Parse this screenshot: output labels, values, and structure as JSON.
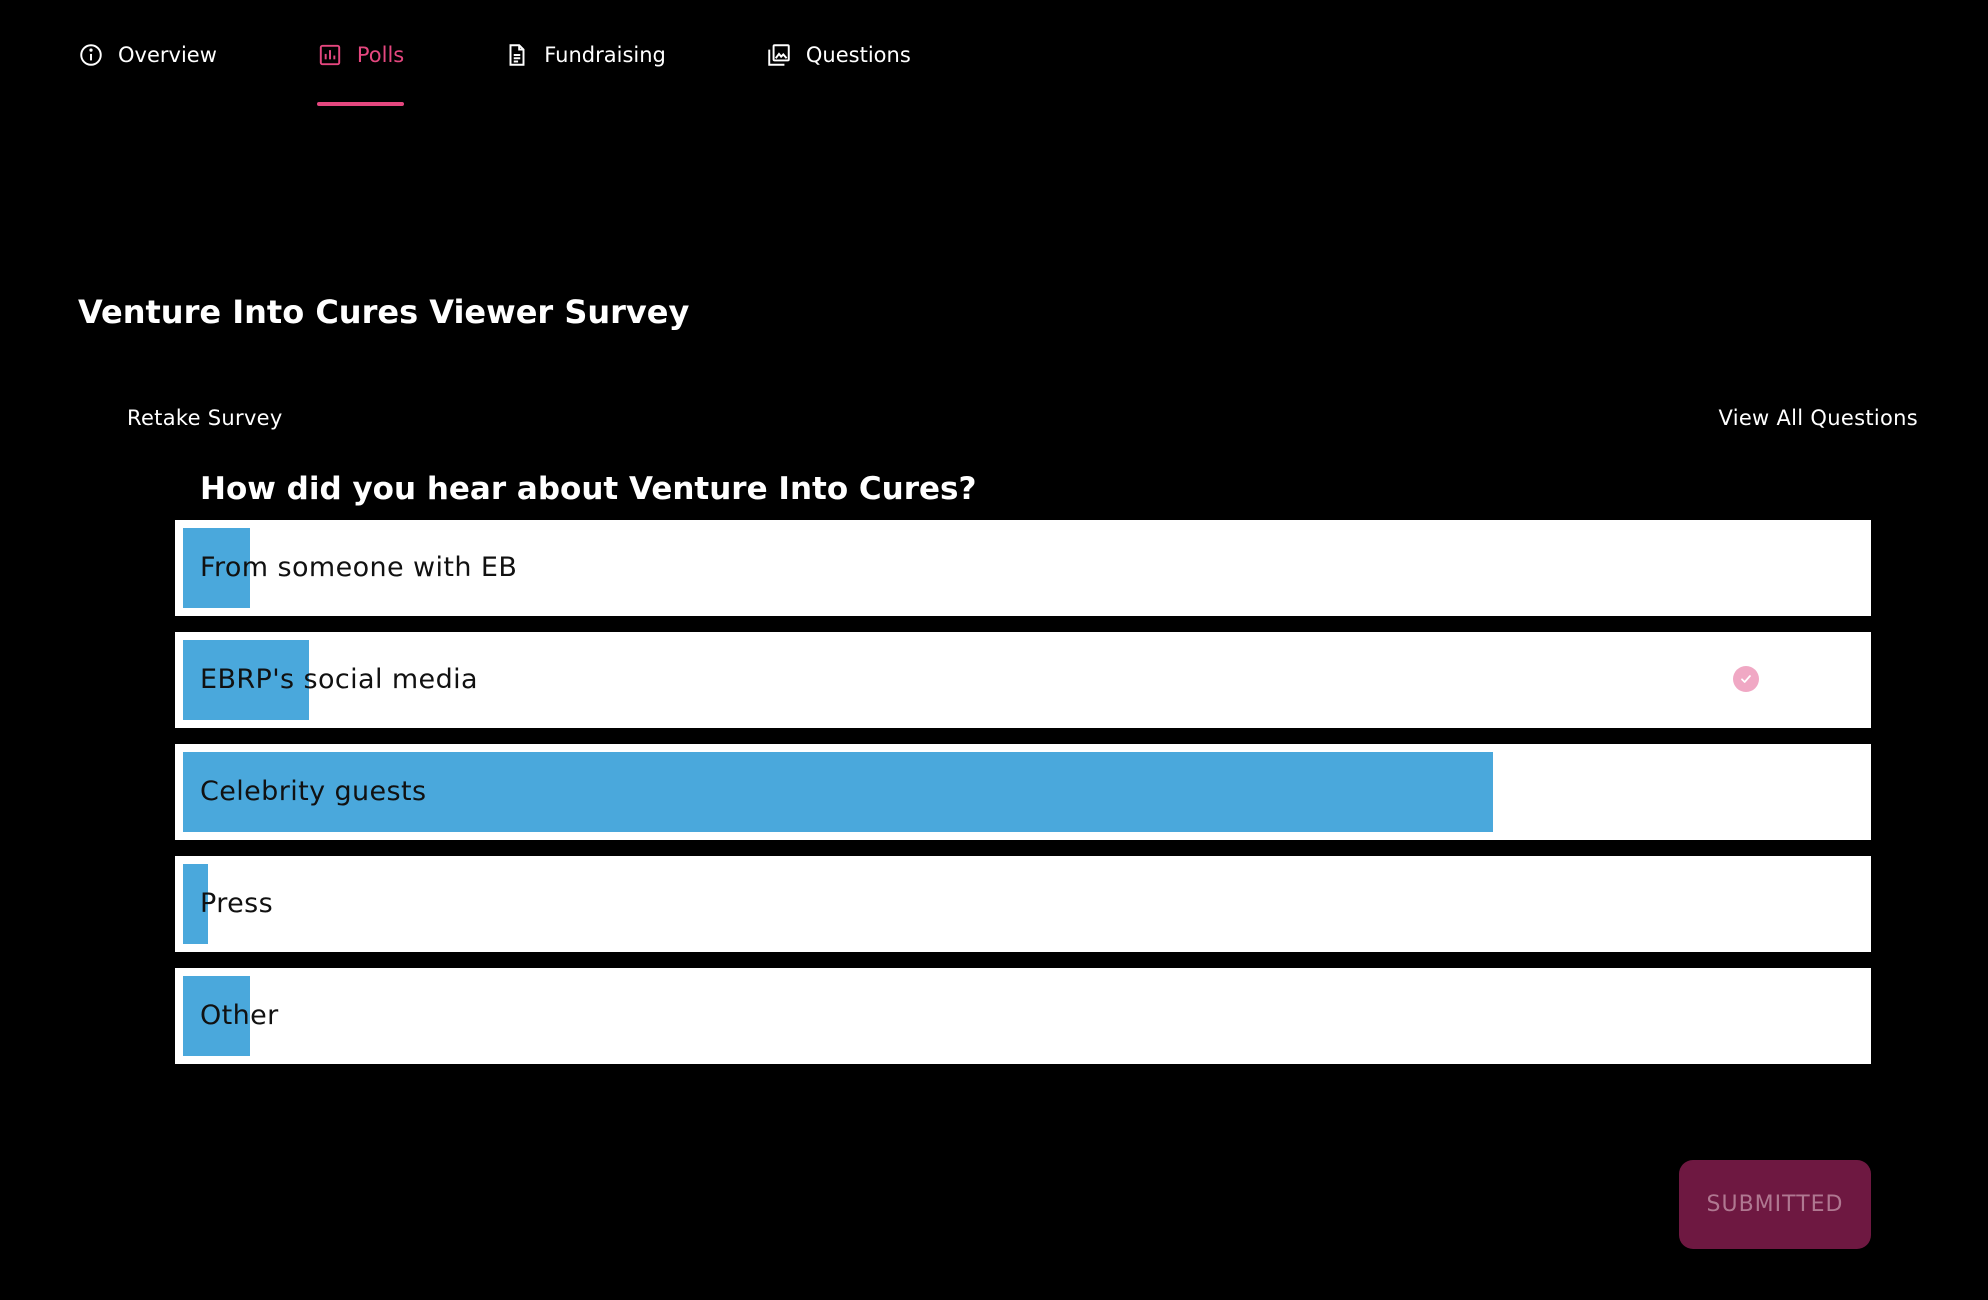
{
  "tabs": [
    {
      "label": "Overview",
      "icon": "info-circle-icon",
      "active": false
    },
    {
      "label": "Polls",
      "icon": "bar-chart-icon",
      "active": true
    },
    {
      "label": "Fundraising",
      "icon": "document-icon",
      "active": false
    },
    {
      "label": "Questions",
      "icon": "image-gallery-icon",
      "active": false
    }
  ],
  "colors": {
    "accent": "#e5477f",
    "bar_fill": "#4aa8dc",
    "button_bg": "#6e1841",
    "button_text": "#b07891",
    "check": "#f0a8c4"
  },
  "survey": {
    "title": "Venture Into Cures Viewer Survey",
    "retake_label": "Retake Survey",
    "view_all_label": "View All Questions",
    "question": "How did you hear about Venture Into Cures?",
    "options": [
      {
        "label": "From someone with EB",
        "share": 0.04,
        "selected": false
      },
      {
        "label": "EBRP's social media",
        "share": 0.075,
        "selected": true
      },
      {
        "label": "Celebrity guests",
        "share": 0.78,
        "selected": false
      },
      {
        "label": "Press",
        "share": 0.015,
        "selected": false
      },
      {
        "label": "Other",
        "share": 0.04,
        "selected": false
      }
    ],
    "submit_label": "SUBMITTED"
  }
}
